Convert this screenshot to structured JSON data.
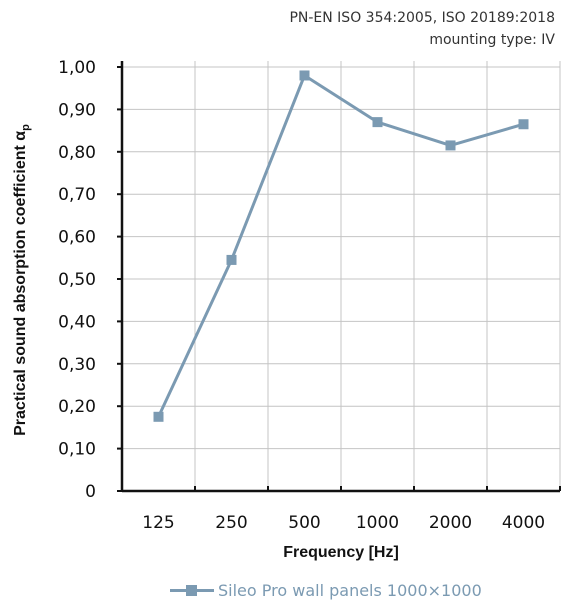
{
  "header": {
    "standard": "PN-EN ISO 354:2005, ISO 20189:2018",
    "mounting": "mounting type: IV"
  },
  "legend_label": "Sileo Pro wall panels 1000×1000",
  "chart_data": {
    "type": "line",
    "title": "",
    "xlabel": "Frequency [Hz]",
    "ylabel": "Practical sound absorption coefficient α",
    "ylabel_subscript": "p",
    "categories": [
      "125",
      "250",
      "500",
      "1000",
      "2000",
      "4000"
    ],
    "yticks": [
      "0",
      "0,10",
      "0,20",
      "0,30",
      "0,40",
      "0,50",
      "0,60",
      "0,70",
      "0,80",
      "0,90",
      "1,00"
    ],
    "ylim": [
      0,
      1.0
    ],
    "grid": true,
    "legend_position": "bottom",
    "series": [
      {
        "name": "Sileo Pro wall panels 1000×1000",
        "values": [
          0.175,
          0.545,
          0.98,
          0.87,
          0.815,
          0.865
        ],
        "color": "#7b9ab2",
        "marker": "square"
      }
    ]
  }
}
